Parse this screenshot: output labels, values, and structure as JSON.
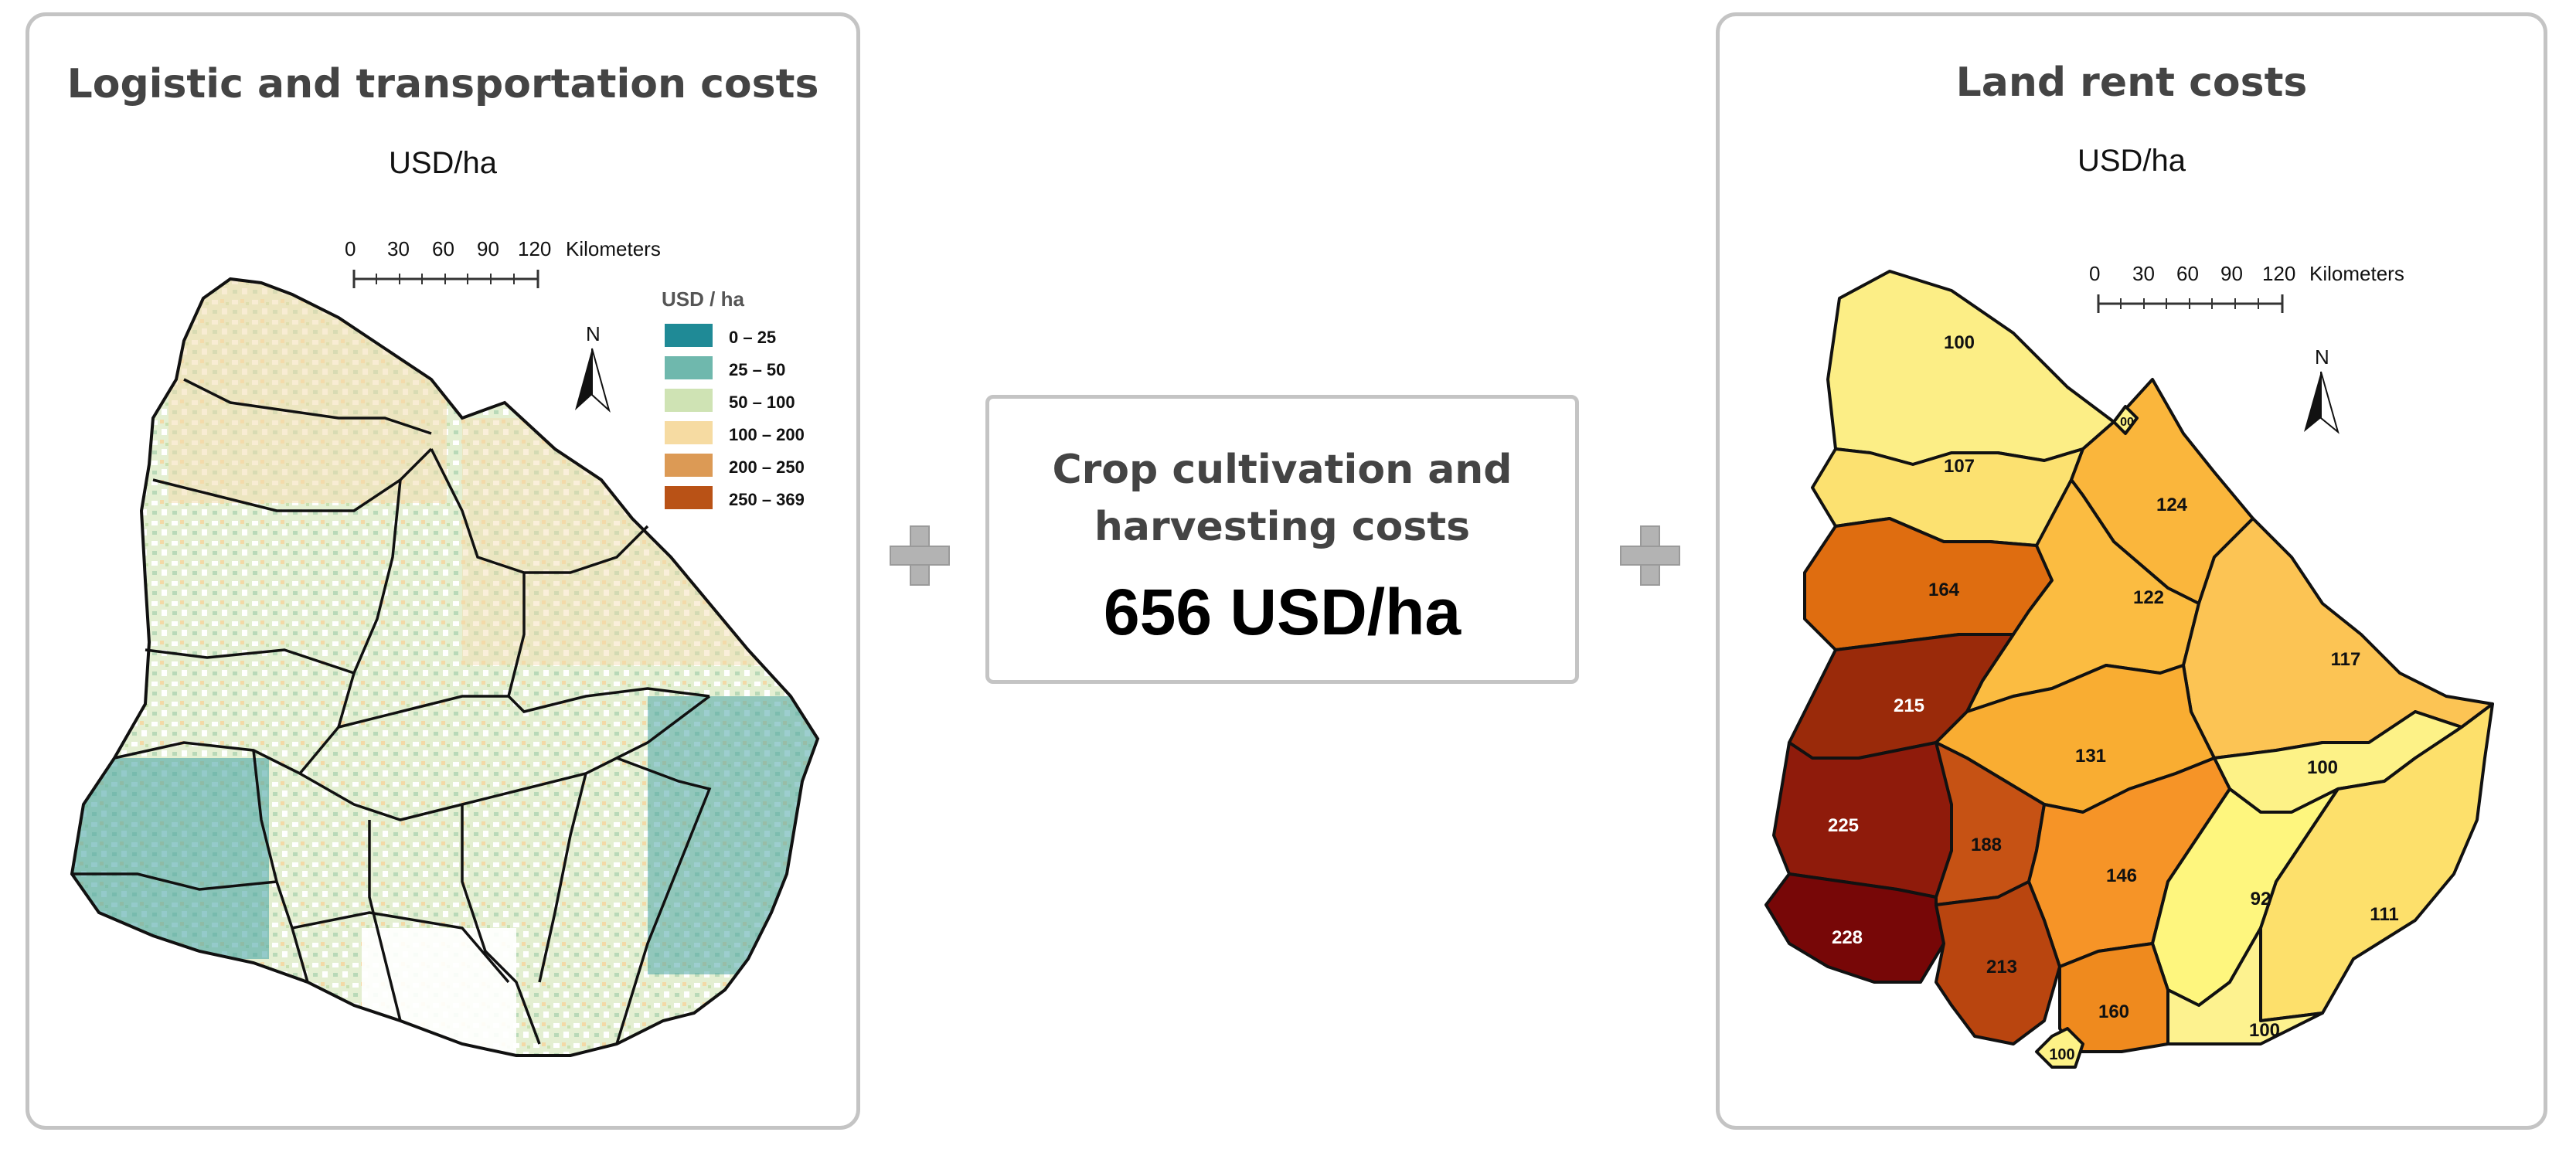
{
  "left_panel": {
    "title": "Logistic and transportation costs",
    "unit": "USD/ha",
    "scale_bar": {
      "ticks": [
        "0",
        "30",
        "60",
        "90",
        "120"
      ],
      "unit": "Kilometers"
    },
    "north_label": "N",
    "legend": {
      "title": "USD / ha",
      "classes": [
        {
          "label": "0 – 25",
          "color": "#1f8a96"
        },
        {
          "label": "25 – 50",
          "color": "#6fb8ad"
        },
        {
          "label": "50 – 100",
          "color": "#cfe3b4"
        },
        {
          "label": "100 – 200",
          "color": "#f6dba2"
        },
        {
          "label": "200 – 250",
          "color": "#dc9a55"
        },
        {
          "label": "250 – 369",
          "color": "#b95216"
        }
      ]
    }
  },
  "center_box": {
    "title_line1": "Crop cultivation and",
    "title_line2": "harvesting costs",
    "value": "656 USD/ha"
  },
  "right_panel": {
    "title": "Land rent costs",
    "unit": "USD/ha",
    "scale_bar": {
      "ticks": [
        "0",
        "30",
        "60",
        "90",
        "120"
      ],
      "unit": "Kilometers"
    },
    "north_label": "N",
    "departments": [
      {
        "value": "100",
        "color": "#fcee86"
      },
      {
        "value": "107",
        "color": "#fce170"
      },
      {
        "value": "124",
        "color": "#fab63c"
      },
      {
        "value": "164",
        "color": "#df6d10"
      },
      {
        "value": "122",
        "color": "#fbbc41"
      },
      {
        "value": "117",
        "color": "#fcc454"
      },
      {
        "value": "215",
        "color": "#9a2a0a"
      },
      {
        "value": "131",
        "color": "#f9ad32"
      },
      {
        "value": "100",
        "color": "#fdf287"
      },
      {
        "value": "225",
        "color": "#8f1b0b"
      },
      {
        "value": "188",
        "color": "#c65214"
      },
      {
        "value": "146",
        "color": "#f69427"
      },
      {
        "value": "92",
        "color": "#fef67e"
      },
      {
        "value": "111",
        "color": "#fde06b"
      },
      {
        "value": "228",
        "color": "#770707"
      },
      {
        "value": "213",
        "color": "#b9450f"
      },
      {
        "value": "160",
        "color": "#ef8a1e"
      },
      {
        "value": "100",
        "color": "#fdf28f"
      },
      {
        "value": "100",
        "color": "#fdf287"
      },
      {
        "value": "00",
        "color": "#fdf287"
      }
    ]
  },
  "colors": {
    "border": "#c4c4c4",
    "plus": "#b3b3b3",
    "title": "#444444"
  }
}
